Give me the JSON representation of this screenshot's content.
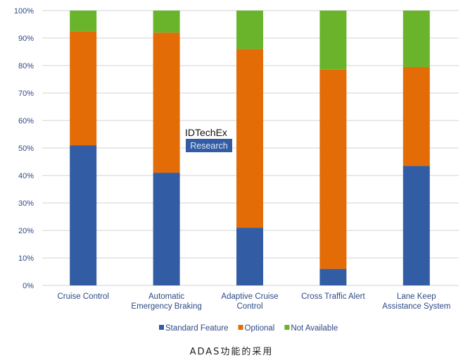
{
  "chart_data": {
    "type": "bar",
    "stacked": true,
    "categories": [
      "Cruise Control",
      "Automatic\nEmergency Braking",
      "Adaptive Cruise\nControl",
      "Cross Traffic Alert",
      "Lane Keep\nAssistance System"
    ],
    "series": [
      {
        "name": "Standard Feature",
        "color": "#325ca3",
        "values": [
          51,
          41,
          21,
          6,
          43.5
        ]
      },
      {
        "name": "Optional",
        "color": "#e36c06",
        "values": [
          41.5,
          51,
          65,
          72.5,
          36
        ]
      },
      {
        "name": "Not Available",
        "color": "#6ab42b",
        "values": [
          7.5,
          8,
          14,
          21.5,
          20.5
        ]
      }
    ],
    "ylim": [
      0,
      100
    ],
    "yticks": [
      "0%",
      "10%",
      "20%",
      "30%",
      "40%",
      "50%",
      "60%",
      "70%",
      "80%",
      "90%",
      "100%"
    ],
    "grid": true,
    "legend": "bottom",
    "axis_label_color": "#2e4a86"
  },
  "watermark": {
    "line1": "IDTechEx",
    "line2": "Research"
  },
  "caption": "ADAS功能的采用"
}
